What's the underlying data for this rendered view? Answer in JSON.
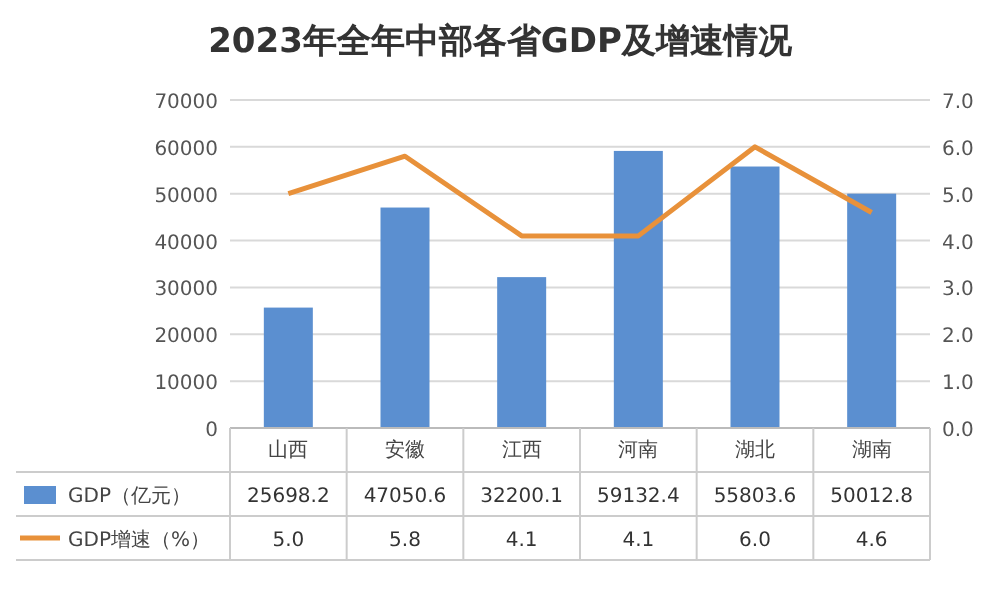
{
  "chart_data": {
    "type": "bar",
    "title": "2023年全年中部各省GDP及增速情况",
    "categories": [
      "山西",
      "安徽",
      "江西",
      "河南",
      "湖北",
      "湖南"
    ],
    "series": [
      {
        "name": "GDP（亿元）",
        "color": "#5b8fd0",
        "values": [
          25698.2,
          47050.6,
          32200.1,
          59132.4,
          55803.6,
          50012.8
        ],
        "value_labels": [
          "25698.2",
          "47050.6",
          "32200.1",
          "59132.4",
          "55803.6",
          "50012.8"
        ]
      },
      {
        "name": "GDP增速（%）",
        "type": "line",
        "axis": "y2",
        "color": "#e8913a",
        "values": [
          5.0,
          5.8,
          4.1,
          4.1,
          6.0,
          4.6
        ],
        "value_labels": [
          "5.0",
          "5.8",
          "4.1",
          "4.1",
          "6.0",
          "4.6"
        ]
      }
    ],
    "ylim": [
      0,
      70000
    ],
    "yticks": [
      0,
      10000,
      20000,
      30000,
      40000,
      50000,
      60000,
      70000
    ],
    "y2lim": [
      0,
      7
    ],
    "y2ticks": [
      {
        "value": 0,
        "label": "0.0"
      },
      {
        "value": 1,
        "label": "1.0"
      },
      {
        "value": 2,
        "label": "2.0"
      },
      {
        "value": 3,
        "label": "3.0"
      },
      {
        "value": 4,
        "label": "4.0"
      },
      {
        "value": 5,
        "label": "5.0"
      },
      {
        "value": 6,
        "label": "6.0"
      },
      {
        "value": 7,
        "label": "7.0"
      }
    ],
    "grid": "y",
    "legend": "bottom",
    "line_style": "solid",
    "marker": "none"
  }
}
